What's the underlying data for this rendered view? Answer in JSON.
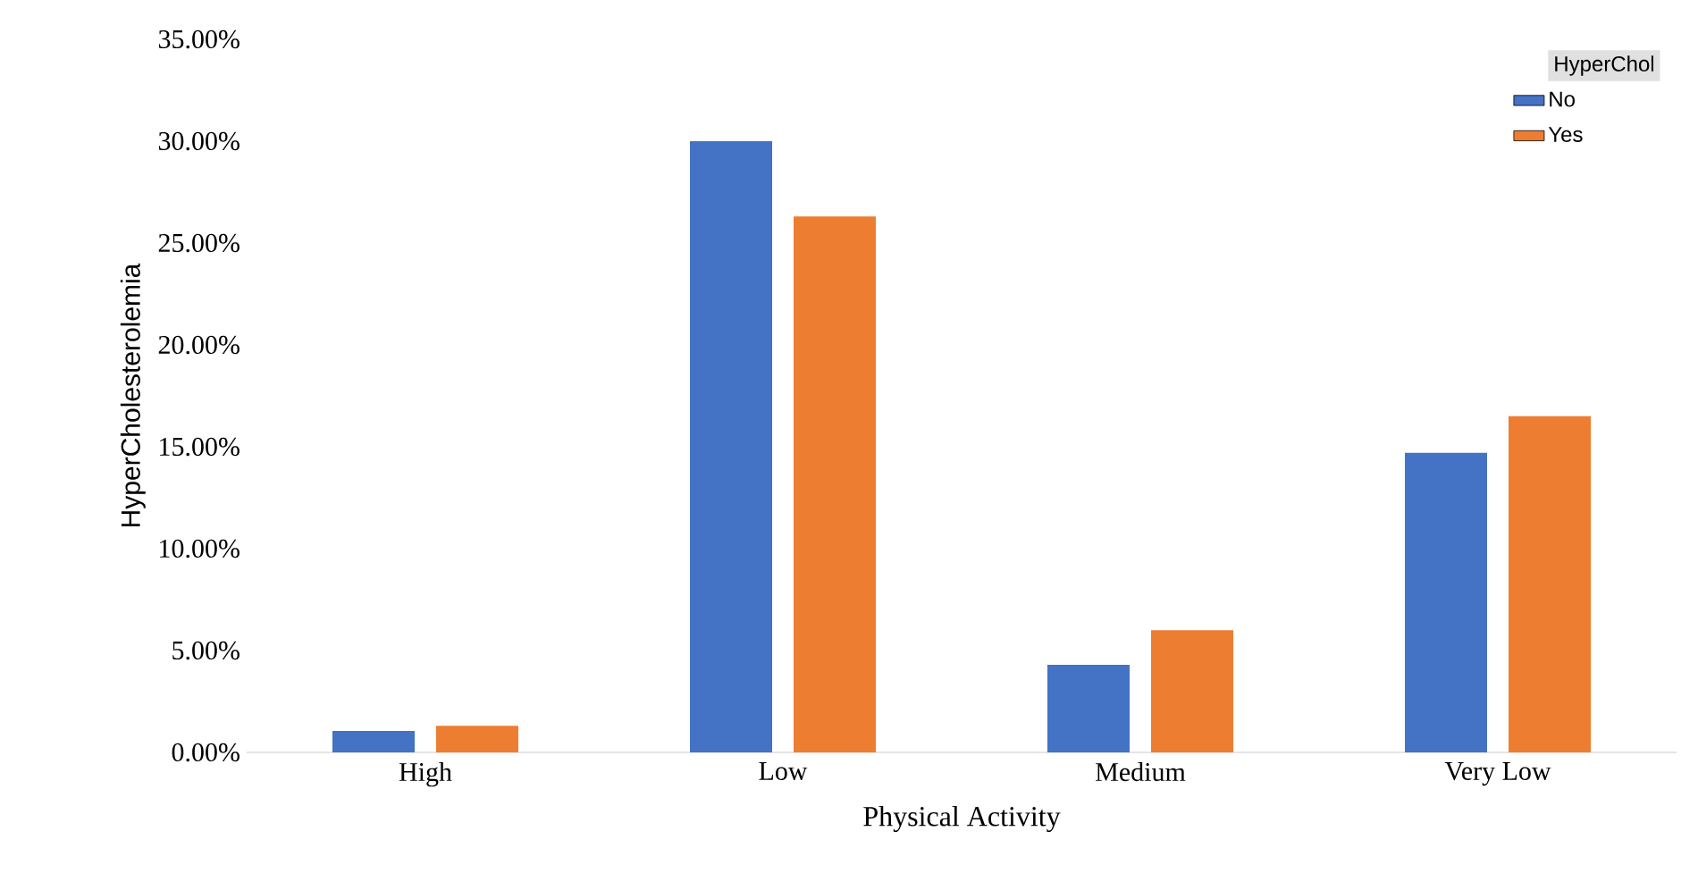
{
  "chart_data": {
    "type": "bar",
    "xlabel": "Physical Activity",
    "ylabel": "HyperCholesterolemia",
    "legend_title": "HyperChol",
    "legend": "top right",
    "categories": [
      "High",
      "Low",
      "Medium",
      "Very Low"
    ],
    "series": [
      {
        "name": "No",
        "color": "#4472c4",
        "values": [
          1.05,
          30.0,
          4.3,
          14.7
        ]
      },
      {
        "name": "Yes",
        "color": "#ed7d31",
        "values": [
          1.3,
          26.3,
          6.0,
          16.5
        ]
      }
    ],
    "ylim": [
      0,
      35
    ],
    "yticks": [
      {
        "value": 0,
        "label": "0.00%"
      },
      {
        "value": 5,
        "label": "5.00%"
      },
      {
        "value": 10,
        "label": "10.00%"
      },
      {
        "value": 15,
        "label": "15.00%"
      },
      {
        "value": 20,
        "label": "20.00%"
      },
      {
        "value": 25,
        "label": "25.00%"
      },
      {
        "value": 30,
        "label": "30.00%"
      },
      {
        "value": 35,
        "label": "35.00%"
      }
    ]
  }
}
